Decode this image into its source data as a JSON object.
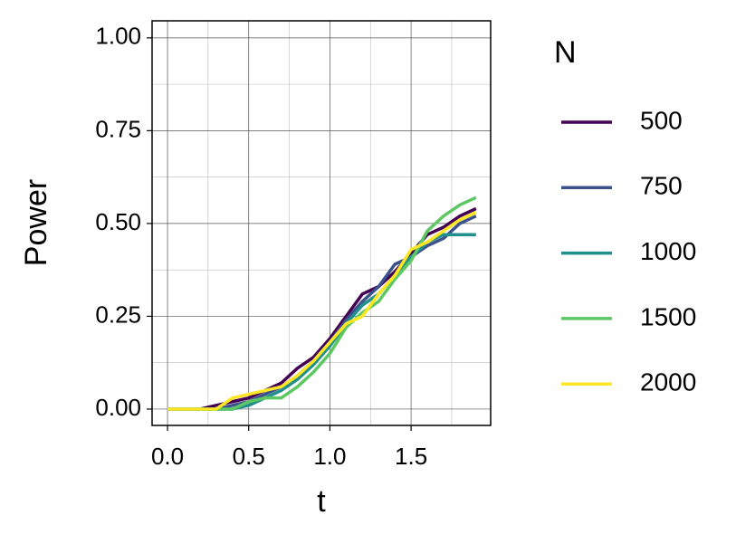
{
  "chart_data": {
    "type": "line",
    "x_label": "t",
    "y_label": "Power",
    "legend_title": "N",
    "x": [
      0,
      0.1,
      0.2,
      0.3,
      0.4,
      0.5,
      0.6,
      0.7,
      0.8,
      0.9,
      1.0,
      1.1,
      1.2,
      1.3,
      1.4,
      1.5,
      1.6,
      1.7,
      1.8,
      1.9
    ],
    "series": [
      {
        "name": "500",
        "color": "#440154",
        "values": [
          0,
          0,
          0,
          0.01,
          0.02,
          0.03,
          0.05,
          0.07,
          0.11,
          0.14,
          0.19,
          0.25,
          0.31,
          0.33,
          0.37,
          0.42,
          0.47,
          0.49,
          0.52,
          0.54
        ]
      },
      {
        "name": "750",
        "color": "#3b528b",
        "values": [
          0,
          0,
          0,
          0,
          0.01,
          0.02,
          0.04,
          0.06,
          0.09,
          0.13,
          0.18,
          0.24,
          0.29,
          0.33,
          0.39,
          0.41,
          0.44,
          0.46,
          0.5,
          0.52
        ]
      },
      {
        "name": "1000",
        "color": "#21908c",
        "values": [
          0,
          0,
          0,
          0,
          0,
          0.01,
          0.03,
          0.05,
          0.08,
          0.12,
          0.17,
          0.23,
          0.28,
          0.31,
          0.36,
          0.41,
          0.45,
          0.47,
          0.47,
          0.47
        ]
      },
      {
        "name": "1500",
        "color": "#5dc863",
        "values": [
          0,
          0,
          0,
          0,
          0,
          0.02,
          0.03,
          0.03,
          0.06,
          0.1,
          0.15,
          0.22,
          0.26,
          0.29,
          0.35,
          0.4,
          0.48,
          0.52,
          0.55,
          0.57
        ]
      },
      {
        "name": "2000",
        "color": "#fde725",
        "values": [
          0,
          0,
          0,
          0,
          0.03,
          0.04,
          0.05,
          0.06,
          0.09,
          0.13,
          0.18,
          0.23,
          0.25,
          0.31,
          0.36,
          0.43,
          0.45,
          0.48,
          0.51,
          0.53
        ]
      }
    ],
    "xlim": [
      -0.095,
      1.99
    ],
    "ylim": [
      -0.044,
      1.046
    ],
    "xticks": [
      {
        "value": 0,
        "label": "0.0"
      },
      {
        "value": 0.5,
        "label": "0.5"
      },
      {
        "value": 1,
        "label": "1.0"
      },
      {
        "value": 1.5,
        "label": "1.5"
      }
    ],
    "yticks": [
      {
        "value": 0,
        "label": "0.00"
      },
      {
        "value": 0.25,
        "label": "0.25"
      },
      {
        "value": 0.5,
        "label": "0.50"
      },
      {
        "value": 0.75,
        "label": "0.75"
      },
      {
        "value": 1,
        "label": "1.00"
      }
    ],
    "grid": true,
    "legend": "right"
  }
}
